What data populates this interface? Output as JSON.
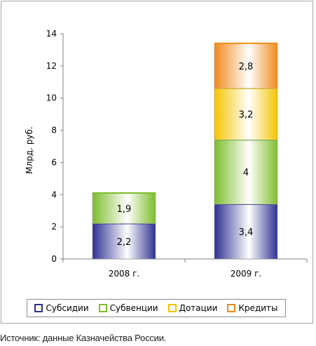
{
  "chart_data": {
    "type": "bar",
    "stacked": true,
    "ylabel": "Млрд. руб.",
    "ylim": [
      0,
      14
    ],
    "yticks": [
      "0",
      "2",
      "4",
      "6",
      "8",
      "10",
      "12",
      "14"
    ],
    "categories": [
      "2008 г.",
      "2009 г."
    ],
    "series": [
      {
        "name": "Субсидии",
        "values": [
          2.2,
          3.4
        ],
        "labels": [
          "2,2",
          "3,4"
        ],
        "color": "#2e3192"
      },
      {
        "name": "Субвенции",
        "values": [
          1.9,
          4.0
        ],
        "labels": [
          "1,9",
          "4"
        ],
        "color": "#7dbd2d"
      },
      {
        "name": "Дотации",
        "values": [
          0,
          3.2
        ],
        "labels": [
          "",
          "3,2"
        ],
        "color": "#f4c400"
      },
      {
        "name": "Кредиты",
        "values": [
          0,
          2.8
        ],
        "labels": [
          "",
          "2,8"
        ],
        "color": "#f08a1c"
      }
    ],
    "grid": false,
    "legend_position": "bottom"
  },
  "source_text": "Источник: данные Казначейства России."
}
